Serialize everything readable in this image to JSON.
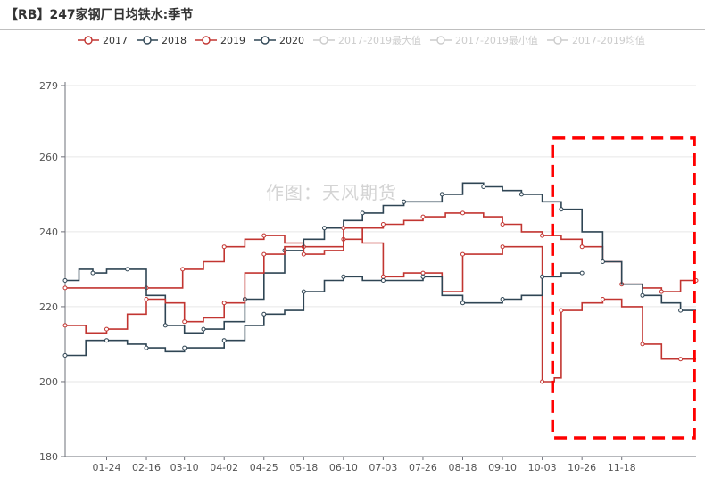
{
  "chart_data": {
    "type": "line",
    "title": "【RB】247家钢厂日均铁水:季节",
    "xlabel": "",
    "ylabel": "",
    "ylim": [
      180,
      279
    ],
    "yticks": [
      180,
      200,
      220,
      240,
      260,
      279
    ],
    "xlim": [
      0,
      365
    ],
    "xticks": [
      {
        "label": "01-24",
        "day": 24
      },
      {
        "label": "02-16",
        "day": 47
      },
      {
        "label": "03-10",
        "day": 69
      },
      {
        "label": "04-02",
        "day": 92
      },
      {
        "label": "04-25",
        "day": 115
      },
      {
        "label": "05-18",
        "day": 138
      },
      {
        "label": "06-10",
        "day": 161
      },
      {
        "label": "07-03",
        "day": 184
      },
      {
        "label": "07-26",
        "day": 207
      },
      {
        "label": "08-18",
        "day": 230
      },
      {
        "label": "09-10",
        "day": 253
      },
      {
        "label": "10-03",
        "day": 276
      },
      {
        "label": "10-26",
        "day": 299
      },
      {
        "label": "11-18",
        "day": 322
      }
    ],
    "grid": "horizontal",
    "legend_position": "top",
    "series": [
      {
        "name": "2017",
        "color": "#c23531",
        "visible": true,
        "x": [
          0,
          24,
          47,
          60,
          68,
          80,
          92,
          104,
          115,
          127,
          138,
          150,
          161,
          172,
          184,
          196,
          207,
          220,
          230,
          242,
          253,
          264,
          276,
          287,
          299,
          311,
          322,
          334,
          345,
          356,
          365
        ],
        "y": [
          225,
          225,
          225,
          225,
          230,
          232,
          236,
          238,
          239,
          237,
          236,
          236,
          238,
          241,
          242,
          243,
          244,
          245,
          245,
          244,
          242,
          240,
          239,
          238,
          236,
          232,
          226,
          225,
          224,
          227,
          227
        ]
      },
      {
        "name": "2018",
        "color": "#2f4554",
        "visible": true,
        "x": [
          0,
          8,
          16,
          24,
          36,
          47,
          58,
          69,
          80,
          92,
          104,
          115,
          127,
          138,
          150,
          161,
          172,
          184,
          196,
          207,
          218,
          230,
          242,
          253,
          264,
          276,
          287,
          299,
          311,
          322,
          334,
          345,
          356,
          365
        ],
        "y": [
          227,
          230,
          229,
          230,
          230,
          223,
          215,
          213,
          214,
          216,
          222,
          229,
          235,
          238,
          241,
          243,
          245,
          247,
          248,
          248,
          250,
          253,
          252,
          251,
          250,
          248,
          246,
          240,
          232,
          226,
          223,
          221,
          219,
          219
        ]
      },
      {
        "name": "2019",
        "color": "#c23531",
        "visible": true,
        "x": [
          0,
          12,
          24,
          36,
          47,
          58,
          69,
          80,
          92,
          104,
          115,
          127,
          138,
          150,
          161,
          172,
          184,
          196,
          207,
          218,
          230,
          242,
          253,
          264,
          276,
          283,
          287,
          299,
          311,
          322,
          334,
          345,
          356,
          365
        ],
        "y": [
          215,
          213,
          214,
          218,
          222,
          221,
          216,
          217,
          221,
          229,
          234,
          236,
          234,
          235,
          241,
          237,
          228,
          229,
          229,
          224,
          234,
          234,
          236,
          236,
          200,
          201,
          219,
          221,
          222,
          220,
          210,
          206,
          206,
          206
        ]
      },
      {
        "name": "2020",
        "color": "#2f4554",
        "visible": true,
        "x": [
          0,
          12,
          24,
          36,
          47,
          58,
          69,
          80,
          92,
          104,
          115,
          127,
          138,
          150,
          161,
          172,
          184,
          196,
          207,
          218,
          230,
          242,
          253,
          264,
          276,
          287,
          299
        ],
        "y": [
          207,
          211,
          211,
          210,
          209,
          208,
          209,
          209,
          211,
          215,
          218,
          219,
          224,
          227,
          228,
          227,
          227,
          227,
          228,
          223,
          221,
          221,
          222,
          223,
          228,
          229,
          229
        ]
      },
      {
        "name": "2017-2019最大值",
        "color": "#cccccc",
        "visible": false,
        "x": [],
        "y": []
      },
      {
        "name": "2017-2019最小值",
        "color": "#cccccc",
        "visible": false,
        "x": [],
        "y": []
      },
      {
        "name": "2017-2019均值",
        "color": "#cccccc",
        "visible": false,
        "x": [],
        "y": []
      }
    ],
    "annotations": [
      {
        "type": "dashed-rectangle",
        "color": "#ff0000",
        "x_from_day": 282,
        "x_to_day": 364,
        "y_from": 185,
        "y_to": 265
      }
    ]
  },
  "watermark": "作图：天风期货"
}
